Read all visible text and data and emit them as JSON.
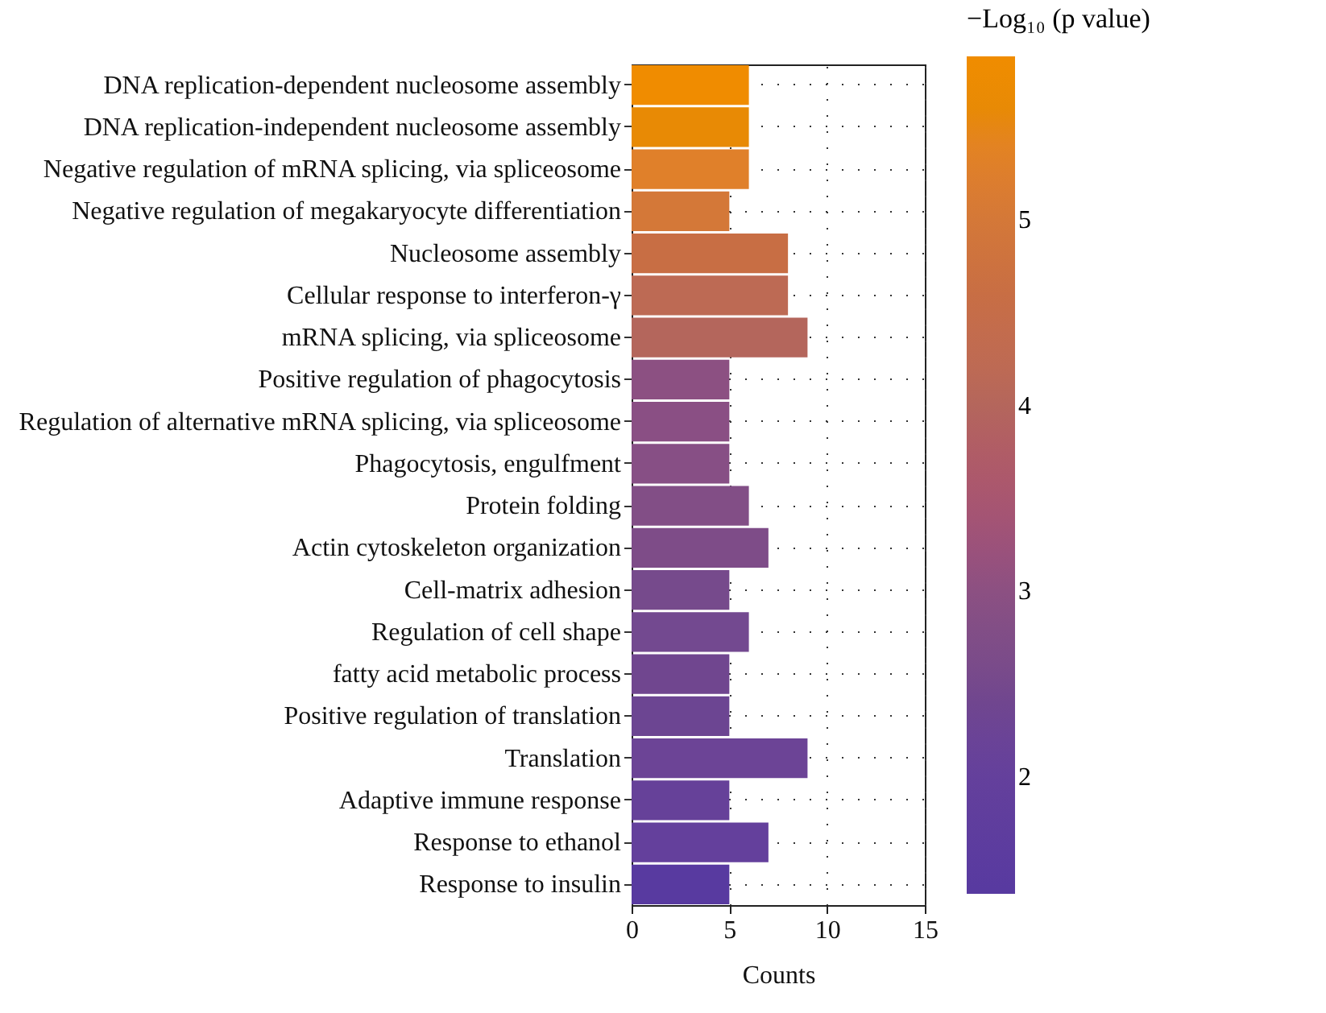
{
  "chart_data": {
    "type": "bar",
    "orientation": "horizontal",
    "categories": [
      "DNA replication-dependent nucleosome assembly",
      "DNA replication-independent nucleosome assembly",
      "Negative regulation of mRNA splicing, via spliceosome",
      "Negative regulation of megakaryocyte differentiation",
      "Nucleosome assembly",
      "Cellular response to interferon-γ",
      "mRNA splicing, via spliceosome",
      "Positive regulation of phagocytosis",
      "Regulation of alternative mRNA splicing, via spliceosome",
      "Phagocytosis, engulfment",
      "Protein folding",
      "Actin cytoskeleton organization",
      "Cell-matrix adhesion",
      "Regulation of cell shape",
      "fatty acid metabolic process",
      "Positive regulation of translation",
      "Translation",
      "Adaptive immune response",
      "Response to ethanol",
      "Response to insulin"
    ],
    "values": [
      6,
      6,
      6,
      5,
      8,
      8,
      9,
      5,
      5,
      5,
      6,
      7,
      5,
      6,
      5,
      5,
      9,
      5,
      7,
      5
    ],
    "cvalues": [
      5.85,
      5.6,
      5.3,
      5.0,
      4.6,
      4.2,
      4.0,
      3.0,
      2.95,
      2.9,
      2.8,
      2.7,
      2.5,
      2.45,
      2.4,
      2.3,
      2.25,
      2.1,
      2.0,
      1.4
    ],
    "colors": [
      "#f08c00",
      "#e88a05",
      "#e0802a",
      "#d47838",
      "#c86e44",
      "#bd6a54",
      "#b4665c",
      "#8c5082",
      "#8a4f84",
      "#874f85",
      "#824e86",
      "#7e4c88",
      "#764a8c",
      "#734990",
      "#70468f",
      "#6c4592",
      "#6c4496",
      "#664199",
      "#64409c",
      "#583aa0"
    ],
    "xlabel": "Counts",
    "xlim": [
      0,
      15
    ],
    "xticks": [
      0,
      5,
      10,
      15
    ],
    "clabel": "−Log₁₀ (p value)",
    "clim": [
      1.37,
      5.88
    ],
    "cticks": [
      2,
      3,
      4,
      5
    ],
    "grid": true
  }
}
